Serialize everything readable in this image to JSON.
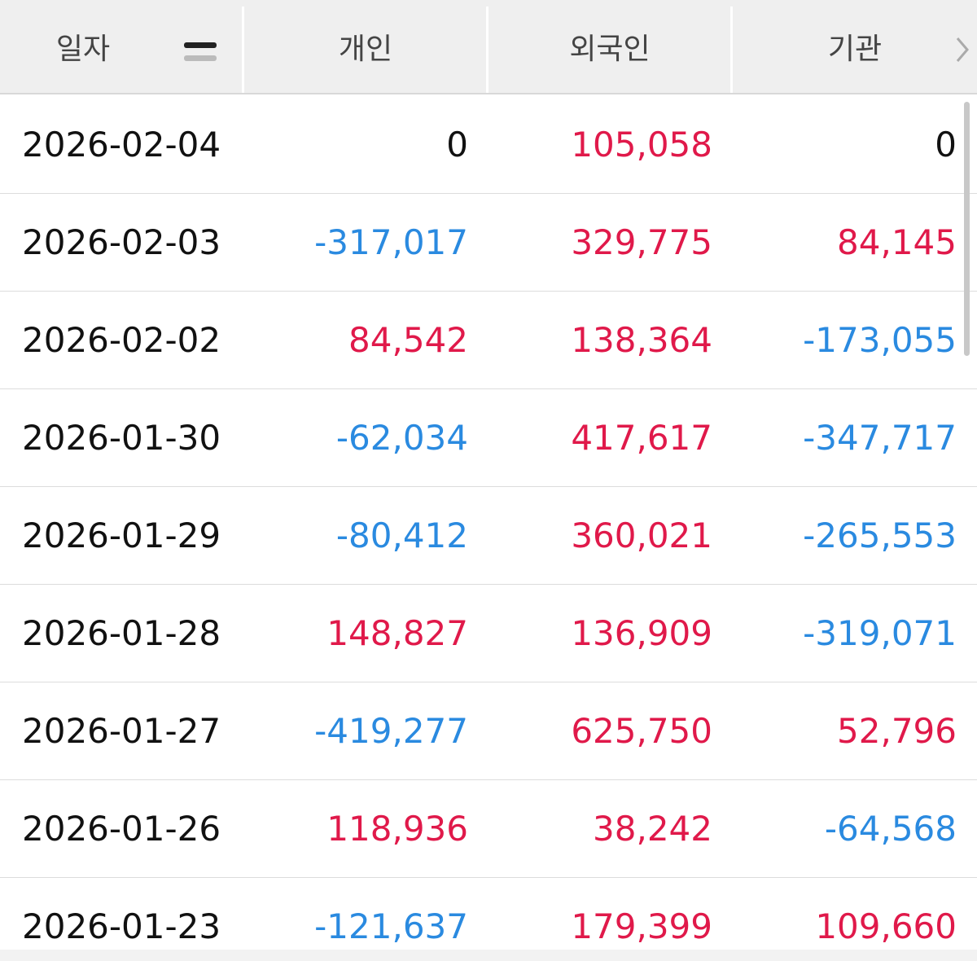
{
  "header": {
    "columns": [
      "일자",
      "개인",
      "외국인",
      "기관"
    ]
  },
  "table": {
    "rows": [
      [
        "2026-02-04",
        "0",
        "105,058",
        "0"
      ],
      [
        "2026-02-03",
        "-317,017",
        "329,775",
        "84,145"
      ],
      [
        "2026-02-02",
        "84,542",
        "138,364",
        "-173,055"
      ],
      [
        "2026-01-30",
        "-62,034",
        "417,617",
        "-347,717"
      ],
      [
        "2026-01-29",
        "-80,412",
        "360,021",
        "-265,553"
      ],
      [
        "2026-01-28",
        "148,827",
        "136,909",
        "-319,071"
      ],
      [
        "2026-01-27",
        "-419,277",
        "625,750",
        "52,796"
      ],
      [
        "2026-01-26",
        "118,936",
        "38,242",
        "-64,568"
      ],
      [
        "2026-01-23",
        "-121,637",
        "179,399",
        "109,660"
      ]
    ]
  }
}
